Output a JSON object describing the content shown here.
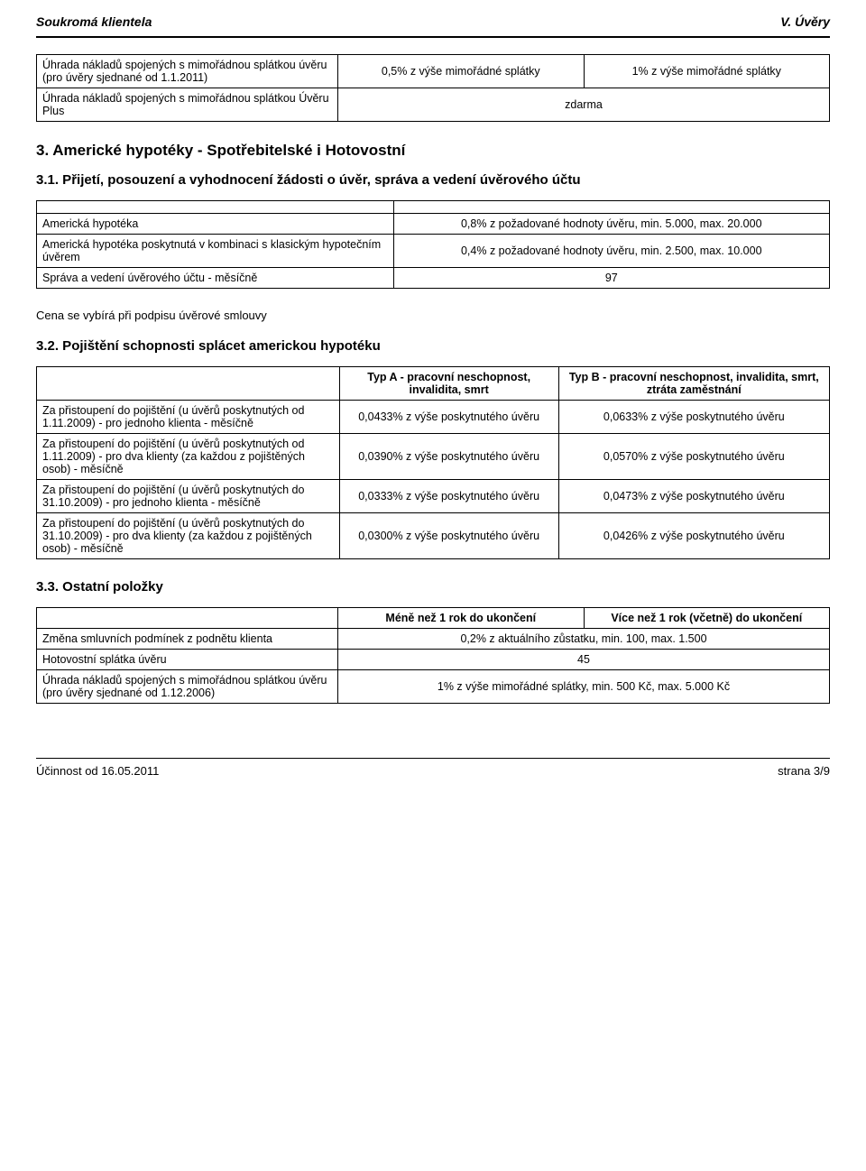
{
  "header": {
    "left": "Soukromá klientela",
    "right": "V. Úvěry"
  },
  "table0": {
    "r1c1": "Úhrada nákladů spojených s mimořádnou splátkou úvěru (pro úvěry sjednané od 1.1.2011)",
    "r1c2": "0,5% z výše mimořádné splátky",
    "r1c3": "1% z výše mimořádné splátky",
    "r2c1": "Úhrada nákladů spojených s mimořádnou splátkou Úvěru Plus",
    "r2c2": "zdarma"
  },
  "sec3_heading": "3. Americké hypotéky - Spotřebitelské i Hotovostní",
  "sec31_heading": "3.1. Přijetí, posouzení a vyhodnocení žádosti o úvěr, správa a vedení  úvěrového účtu",
  "table1": {
    "r1c1": "Americká hypotéka",
    "r1c2": "0,8% z požadované hodnoty úvěru, min. 5.000, max. 20.000",
    "r2c1": "Americká hypotéka poskytnutá v kombinaci s klasickým hypotečním úvěrem",
    "r2c2": "0,4% z požadované hodnoty úvěru, min. 2.500, max. 10.000",
    "r3c1": "Správa a vedení úvěrového účtu - měsíčně",
    "r3c2": "97"
  },
  "note1": "Cena se vybírá při podpisu úvěrové smlouvy",
  "sec32_heading": "3.2. Pojištění schopnosti splácet americkou hypotéku",
  "table2": {
    "c2h": "Typ A - pracovní neschopnost, invalidita, smrt",
    "c3h": "Typ B - pracovní neschopnost, invalidita, smrt, ztráta zaměstnání",
    "r1c1": "Za přistoupení do pojištění (u úvěrů poskytnutých od 1.11.2009) - pro jednoho klienta - měsíčně",
    "r1c2": "0,0433% z výše poskytnutého úvěru",
    "r1c3": "0,0633% z výše poskytnutého úvěru",
    "r2c1": "Za přistoupení do pojištění (u úvěrů poskytnutých od 1.11.2009) - pro dva klienty (za každou z pojištěných osob) - měsíčně",
    "r2c2": "0,0390% z výše poskytnutého úvěru",
    "r2c3": "0,0570% z výše poskytnutého úvěru",
    "r3c1": "Za přistoupení do pojištění (u úvěrů poskytnutých do 31.10.2009) - pro jednoho klienta - měsíčně",
    "r3c2": "0,0333% z výše poskytnutého úvěru",
    "r3c3": "0,0473% z výše poskytnutého úvěru",
    "r4c1": "Za přistoupení do pojištění (u úvěrů poskytnutých do 31.10.2009) - pro dva klienty (za každou z pojištěných osob) - měsíčně",
    "r4c2": "0,0300% z výše poskytnutého úvěru",
    "r4c3": "0,0426% z výše poskytnutého úvěru"
  },
  "sec33_heading": "3.3. Ostatní položky",
  "table3": {
    "c2h": "Méně než 1 rok do ukončení",
    "c3h": "Více než 1 rok (včetně) do ukončení",
    "r1c1": "Změna smluvních podmínek z podnětu klienta",
    "r1c2": "0,2% z aktuálního zůstatku, min. 100, max. 1.500",
    "r2c1": "Hotovostní splátka úvěru",
    "r2c2": "45",
    "r3c1": "Úhrada nákladů spojených s mimořádnou splátkou úvěru (pro úvěry sjednané od 1.12.2006)",
    "r3c2": "1% z výše mimořádné splátky, min. 500 Kč,  max. 5.000 Kč"
  },
  "footer": {
    "left": "Účinnost od 16.05.2011",
    "right": "strana 3/9"
  }
}
